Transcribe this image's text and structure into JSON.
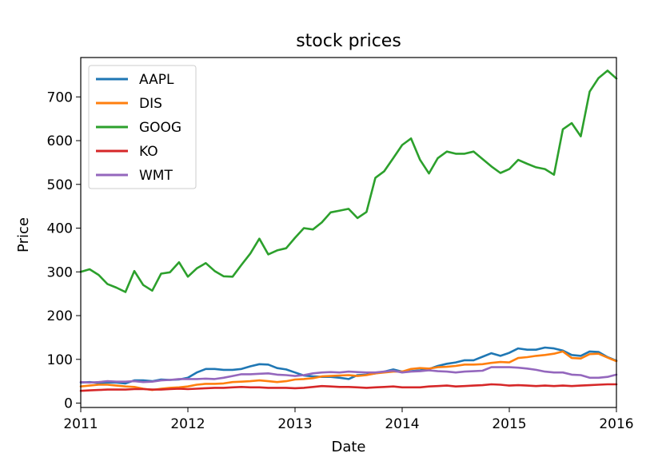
{
  "chart_data": {
    "type": "line",
    "title": "stock prices",
    "xlabel": "Date",
    "ylabel": "Price",
    "xlim": [
      2011,
      2016
    ],
    "ylim": [
      -10,
      790
    ],
    "xticks": [
      "2011",
      "2012",
      "2013",
      "2014",
      "2015",
      "2016"
    ],
    "yticks": [
      "0",
      "100",
      "200",
      "300",
      "400",
      "500",
      "600",
      "700"
    ],
    "legend_position": "top-left",
    "grid": false,
    "series": [
      {
        "name": "AAPL",
        "color": "#1f77b4",
        "points": [
          [
            2011.0,
            47
          ],
          [
            2011.083,
            48
          ],
          [
            2011.167,
            46
          ],
          [
            2011.25,
            47
          ],
          [
            2011.333,
            47
          ],
          [
            2011.417,
            45
          ],
          [
            2011.5,
            52
          ],
          [
            2011.583,
            52
          ],
          [
            2011.667,
            50
          ],
          [
            2011.75,
            54
          ],
          [
            2011.833,
            53
          ],
          [
            2011.917,
            54
          ],
          [
            2012.0,
            58
          ],
          [
            2012.083,
            70
          ],
          [
            2012.167,
            78
          ],
          [
            2012.25,
            78
          ],
          [
            2012.333,
            76
          ],
          [
            2012.417,
            76
          ],
          [
            2012.5,
            78
          ],
          [
            2012.583,
            84
          ],
          [
            2012.667,
            89
          ],
          [
            2012.75,
            88
          ],
          [
            2012.833,
            80
          ],
          [
            2012.917,
            77
          ],
          [
            2013.0,
            70
          ],
          [
            2013.083,
            63
          ],
          [
            2013.167,
            61
          ],
          [
            2013.25,
            60
          ],
          [
            2013.333,
            60
          ],
          [
            2013.417,
            58
          ],
          [
            2013.5,
            55
          ],
          [
            2013.583,
            64
          ],
          [
            2013.667,
            65
          ],
          [
            2013.75,
            68
          ],
          [
            2013.833,
            72
          ],
          [
            2013.917,
            77
          ],
          [
            2014.0,
            72
          ],
          [
            2014.083,
            73
          ],
          [
            2014.167,
            75
          ],
          [
            2014.25,
            78
          ],
          [
            2014.333,
            85
          ],
          [
            2014.417,
            90
          ],
          [
            2014.5,
            93
          ],
          [
            2014.583,
            98
          ],
          [
            2014.667,
            98
          ],
          [
            2014.75,
            106
          ],
          [
            2014.833,
            114
          ],
          [
            2014.917,
            108
          ],
          [
            2015.0,
            115
          ],
          [
            2015.083,
            125
          ],
          [
            2015.167,
            122
          ],
          [
            2015.25,
            122
          ],
          [
            2015.333,
            127
          ],
          [
            2015.417,
            125
          ],
          [
            2015.5,
            120
          ],
          [
            2015.583,
            110
          ],
          [
            2015.667,
            108
          ],
          [
            2015.75,
            118
          ],
          [
            2015.833,
            117
          ],
          [
            2015.917,
            105
          ],
          [
            2016.0,
            97
          ]
        ]
      },
      {
        "name": "DIS",
        "color": "#ff7f0e",
        "points": [
          [
            2011.0,
            38
          ],
          [
            2011.083,
            40
          ],
          [
            2011.167,
            42
          ],
          [
            2011.25,
            42
          ],
          [
            2011.333,
            40
          ],
          [
            2011.417,
            38
          ],
          [
            2011.5,
            37
          ],
          [
            2011.583,
            33
          ],
          [
            2011.667,
            30
          ],
          [
            2011.75,
            33
          ],
          [
            2011.833,
            35
          ],
          [
            2011.917,
            36
          ],
          [
            2012.0,
            38
          ],
          [
            2012.083,
            42
          ],
          [
            2012.167,
            44
          ],
          [
            2012.25,
            44
          ],
          [
            2012.333,
            45
          ],
          [
            2012.417,
            48
          ],
          [
            2012.5,
            49
          ],
          [
            2012.583,
            50
          ],
          [
            2012.667,
            52
          ],
          [
            2012.75,
            50
          ],
          [
            2012.833,
            48
          ],
          [
            2012.917,
            50
          ],
          [
            2013.0,
            54
          ],
          [
            2013.083,
            55
          ],
          [
            2013.167,
            57
          ],
          [
            2013.25,
            61
          ],
          [
            2013.333,
            62
          ],
          [
            2013.417,
            63
          ],
          [
            2013.5,
            64
          ],
          [
            2013.583,
            62
          ],
          [
            2013.667,
            64
          ],
          [
            2013.75,
            68
          ],
          [
            2013.833,
            70
          ],
          [
            2013.917,
            72
          ],
          [
            2014.0,
            72
          ],
          [
            2014.083,
            78
          ],
          [
            2014.167,
            80
          ],
          [
            2014.25,
            79
          ],
          [
            2014.333,
            82
          ],
          [
            2014.417,
            83
          ],
          [
            2014.5,
            85
          ],
          [
            2014.583,
            88
          ],
          [
            2014.667,
            88
          ],
          [
            2014.75,
            89
          ],
          [
            2014.833,
            92
          ],
          [
            2014.917,
            94
          ],
          [
            2015.0,
            93
          ],
          [
            2015.083,
            103
          ],
          [
            2015.167,
            105
          ],
          [
            2015.25,
            108
          ],
          [
            2015.333,
            110
          ],
          [
            2015.417,
            113
          ],
          [
            2015.5,
            118
          ],
          [
            2015.583,
            103
          ],
          [
            2015.667,
            102
          ],
          [
            2015.75,
            112
          ],
          [
            2015.833,
            113
          ],
          [
            2015.917,
            104
          ],
          [
            2016.0,
            96
          ]
        ]
      },
      {
        "name": "GOOG",
        "color": "#2ca02c",
        "points": [
          [
            2011.0,
            300
          ],
          [
            2011.083,
            306
          ],
          [
            2011.167,
            293
          ],
          [
            2011.25,
            272
          ],
          [
            2011.333,
            264
          ],
          [
            2011.417,
            254
          ],
          [
            2011.5,
            302
          ],
          [
            2011.583,
            270
          ],
          [
            2011.667,
            257
          ],
          [
            2011.75,
            296
          ],
          [
            2011.833,
            299
          ],
          [
            2011.917,
            322
          ],
          [
            2012.0,
            289
          ],
          [
            2012.083,
            308
          ],
          [
            2012.167,
            320
          ],
          [
            2012.25,
            302
          ],
          [
            2012.333,
            290
          ],
          [
            2012.417,
            289
          ],
          [
            2012.5,
            316
          ],
          [
            2012.583,
            342
          ],
          [
            2012.667,
            376
          ],
          [
            2012.75,
            340
          ],
          [
            2012.833,
            349
          ],
          [
            2012.917,
            354
          ],
          [
            2013.0,
            378
          ],
          [
            2013.083,
            400
          ],
          [
            2013.167,
            397
          ],
          [
            2013.25,
            413
          ],
          [
            2013.333,
            436
          ],
          [
            2013.417,
            440
          ],
          [
            2013.5,
            444
          ],
          [
            2013.583,
            423
          ],
          [
            2013.667,
            437
          ],
          [
            2013.75,
            515
          ],
          [
            2013.833,
            530
          ],
          [
            2013.917,
            560
          ],
          [
            2014.0,
            590
          ],
          [
            2014.083,
            605
          ],
          [
            2014.167,
            556
          ],
          [
            2014.25,
            525
          ],
          [
            2014.333,
            560
          ],
          [
            2014.417,
            575
          ],
          [
            2014.5,
            570
          ],
          [
            2014.583,
            570
          ],
          [
            2014.667,
            575
          ],
          [
            2014.75,
            558
          ],
          [
            2014.833,
            541
          ],
          [
            2014.917,
            526
          ],
          [
            2015.0,
            535
          ],
          [
            2015.083,
            556
          ],
          [
            2015.167,
            547
          ],
          [
            2015.25,
            539
          ],
          [
            2015.333,
            535
          ],
          [
            2015.417,
            522
          ],
          [
            2015.5,
            626
          ],
          [
            2015.583,
            640
          ],
          [
            2015.667,
            610
          ],
          [
            2015.75,
            712
          ],
          [
            2015.833,
            743
          ],
          [
            2015.917,
            760
          ],
          [
            2016.0,
            742
          ]
        ]
      },
      {
        "name": "KO",
        "color": "#d62728",
        "points": [
          [
            2011.0,
            28
          ],
          [
            2011.083,
            29
          ],
          [
            2011.167,
            30
          ],
          [
            2011.25,
            31
          ],
          [
            2011.333,
            31
          ],
          [
            2011.417,
            31
          ],
          [
            2011.5,
            32
          ],
          [
            2011.583,
            32
          ],
          [
            2011.667,
            31
          ],
          [
            2011.75,
            31
          ],
          [
            2011.833,
            32
          ],
          [
            2011.917,
            33
          ],
          [
            2012.0,
            32
          ],
          [
            2012.083,
            33
          ],
          [
            2012.167,
            34
          ],
          [
            2012.25,
            35
          ],
          [
            2012.333,
            35
          ],
          [
            2012.417,
            36
          ],
          [
            2012.5,
            37
          ],
          [
            2012.583,
            36
          ],
          [
            2012.667,
            36
          ],
          [
            2012.75,
            35
          ],
          [
            2012.833,
            35
          ],
          [
            2012.917,
            35
          ],
          [
            2013.0,
            34
          ],
          [
            2013.083,
            35
          ],
          [
            2013.167,
            37
          ],
          [
            2013.25,
            39
          ],
          [
            2013.333,
            38
          ],
          [
            2013.417,
            37
          ],
          [
            2013.5,
            37
          ],
          [
            2013.583,
            36
          ],
          [
            2013.667,
            35
          ],
          [
            2013.75,
            36
          ],
          [
            2013.833,
            37
          ],
          [
            2013.917,
            38
          ],
          [
            2014.0,
            36
          ],
          [
            2014.083,
            36
          ],
          [
            2014.167,
            36
          ],
          [
            2014.25,
            38
          ],
          [
            2014.333,
            39
          ],
          [
            2014.417,
            40
          ],
          [
            2014.5,
            38
          ],
          [
            2014.583,
            39
          ],
          [
            2014.667,
            40
          ],
          [
            2014.75,
            41
          ],
          [
            2014.833,
            43
          ],
          [
            2014.917,
            42
          ],
          [
            2015.0,
            40
          ],
          [
            2015.083,
            41
          ],
          [
            2015.167,
            40
          ],
          [
            2015.25,
            39
          ],
          [
            2015.333,
            40
          ],
          [
            2015.417,
            39
          ],
          [
            2015.5,
            40
          ],
          [
            2015.583,
            39
          ],
          [
            2015.667,
            40
          ],
          [
            2015.75,
            41
          ],
          [
            2015.833,
            42
          ],
          [
            2015.917,
            43
          ],
          [
            2016.0,
            43
          ]
        ]
      },
      {
        "name": "WMT",
        "color": "#9467bd",
        "points": [
          [
            2011.0,
            48
          ],
          [
            2011.083,
            47
          ],
          [
            2011.167,
            48
          ],
          [
            2011.25,
            50
          ],
          [
            2011.333,
            49
          ],
          [
            2011.417,
            49
          ],
          [
            2011.5,
            50
          ],
          [
            2011.583,
            48
          ],
          [
            2011.667,
            49
          ],
          [
            2011.75,
            52
          ],
          [
            2011.833,
            53
          ],
          [
            2011.917,
            55
          ],
          [
            2012.0,
            55
          ],
          [
            2012.083,
            55
          ],
          [
            2012.167,
            56
          ],
          [
            2012.25,
            55
          ],
          [
            2012.333,
            58
          ],
          [
            2012.417,
            62
          ],
          [
            2012.5,
            66
          ],
          [
            2012.583,
            66
          ],
          [
            2012.667,
            67
          ],
          [
            2012.75,
            68
          ],
          [
            2012.833,
            65
          ],
          [
            2012.917,
            64
          ],
          [
            2013.0,
            62
          ],
          [
            2013.083,
            64
          ],
          [
            2013.167,
            68
          ],
          [
            2013.25,
            70
          ],
          [
            2013.333,
            71
          ],
          [
            2013.417,
            70
          ],
          [
            2013.5,
            72
          ],
          [
            2013.583,
            71
          ],
          [
            2013.667,
            70
          ],
          [
            2013.75,
            70
          ],
          [
            2013.833,
            72
          ],
          [
            2013.917,
            74
          ],
          [
            2014.0,
            70
          ],
          [
            2014.083,
            72
          ],
          [
            2014.167,
            73
          ],
          [
            2014.25,
            75
          ],
          [
            2014.333,
            73
          ],
          [
            2014.417,
            72
          ],
          [
            2014.5,
            70
          ],
          [
            2014.583,
            72
          ],
          [
            2014.667,
            73
          ],
          [
            2014.75,
            74
          ],
          [
            2014.833,
            82
          ],
          [
            2014.917,
            82
          ],
          [
            2015.0,
            82
          ],
          [
            2015.083,
            81
          ],
          [
            2015.167,
            79
          ],
          [
            2015.25,
            76
          ],
          [
            2015.333,
            72
          ],
          [
            2015.417,
            70
          ],
          [
            2015.5,
            70
          ],
          [
            2015.583,
            65
          ],
          [
            2015.667,
            64
          ],
          [
            2015.75,
            58
          ],
          [
            2015.833,
            58
          ],
          [
            2015.917,
            60
          ],
          [
            2016.0,
            65
          ]
        ]
      }
    ]
  }
}
